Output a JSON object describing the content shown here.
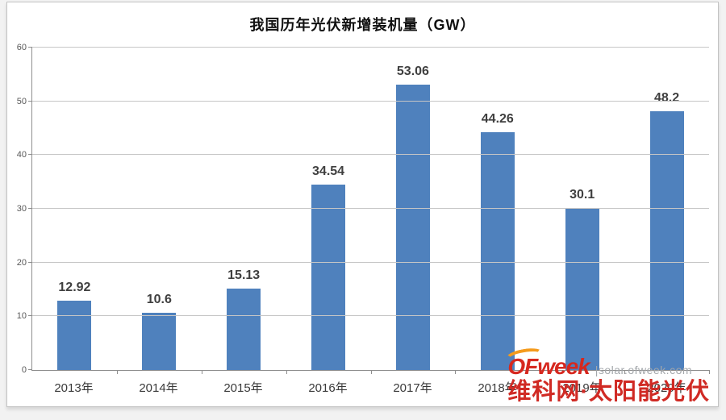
{
  "chart_data": {
    "type": "bar",
    "title": "我国历年光伏新增装机量（GW）",
    "categories": [
      "2013年",
      "2014年",
      "2015年",
      "2016年",
      "2017年",
      "2018年",
      "2019年",
      "2020年"
    ],
    "values": [
      12.92,
      10.6,
      15.13,
      34.54,
      53.06,
      44.26,
      30.1,
      48.2
    ],
    "xlabel": "",
    "ylabel": "",
    "ylim": [
      0,
      60
    ],
    "yticks": [
      0,
      10,
      20,
      30,
      40,
      50,
      60
    ],
    "grid": true,
    "legend": "none",
    "bar_color": "#4f81bd",
    "gridline_color": "#c6c6c6",
    "axis_color": "#8e8e8e",
    "value_label_color": "#3f3f3f"
  },
  "watermark": {
    "brand": "OFweek",
    "site_url": "|solar.ofweek.com",
    "subtitle": "维科网·太阳能光伏",
    "brand_color": "#d6281f",
    "subtitle_color": "#d02a24",
    "site_color": "#a3a7ab",
    "swoosh_color": "#f49b1d"
  }
}
